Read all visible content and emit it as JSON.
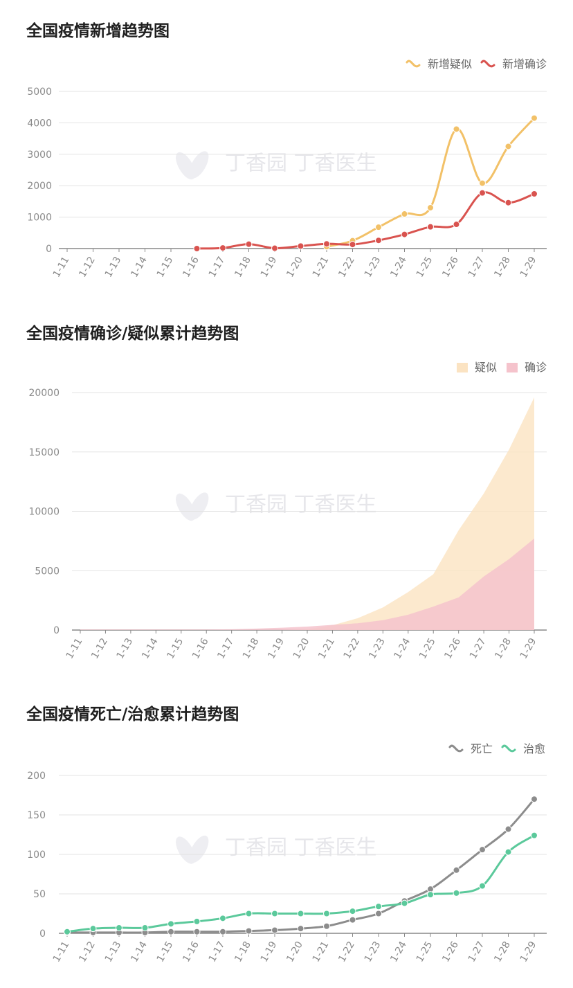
{
  "charts": [
    {
      "title": "全国疫情新增趋势图",
      "chart_data": {
        "type": "line",
        "categories": [
          "1-11",
          "1-12",
          "1-13",
          "1-14",
          "1-15",
          "1-16",
          "1-17",
          "1-18",
          "1-19",
          "1-20",
          "1-21",
          "1-22",
          "1-23",
          "1-24",
          "1-25",
          "1-26",
          "1-27",
          "1-28",
          "1-29"
        ],
        "ylim": [
          0,
          5000
        ],
        "yticks": [
          0,
          1000,
          2000,
          3000,
          4000,
          5000
        ],
        "legend_position": "top-right",
        "grid": true,
        "series": [
          {
            "name": "新增疑似",
            "color": "#f2c168",
            "values": [
              null,
              null,
              null,
              null,
              null,
              null,
              null,
              null,
              null,
              null,
              60,
              250,
              680,
              1100,
              1300,
              3800,
              2080,
              3250,
              4150
            ]
          },
          {
            "name": "新增确诊",
            "color": "#d9534f",
            "values": [
              null,
              null,
              null,
              null,
              null,
              0,
              20,
              140,
              10,
              80,
              150,
              130,
              260,
              450,
              690,
              770,
              1770,
              1460,
              1740
            ]
          }
        ]
      }
    },
    {
      "title": "全国疫情确诊/疑似累计趋势图",
      "chart_data": {
        "type": "area",
        "categories": [
          "1-11",
          "1-12",
          "1-13",
          "1-14",
          "1-15",
          "1-16",
          "1-17",
          "1-18",
          "1-19",
          "1-20",
          "1-21",
          "1-22",
          "1-23",
          "1-24",
          "1-25",
          "1-26",
          "1-27",
          "1-28",
          "1-29"
        ],
        "ylim": [
          0,
          20000
        ],
        "yticks": [
          0,
          5000,
          10000,
          15000,
          20000
        ],
        "legend_position": "top-right",
        "grid": true,
        "series": [
          {
            "name": "疑似",
            "color": "#fbe3c2",
            "values": [
              0,
              0,
              0,
              0,
              0,
              0,
              0,
              0,
              0,
              50,
              400,
              1000,
              1900,
              3200,
              4700,
              8400,
              11500,
              15200,
              19600
            ]
          },
          {
            "name": "确诊",
            "color": "#f5c3cc",
            "values": [
              41,
              41,
              41,
              41,
              41,
              45,
              62,
              121,
              198,
              291,
              440,
              571,
              830,
              1287,
              1975,
              2744,
              4515,
              5974,
              7711
            ]
          }
        ]
      }
    },
    {
      "title": "全国疫情死亡/治愈累计趋势图",
      "chart_data": {
        "type": "line",
        "categories": [
          "1-11",
          "1-12",
          "1-13",
          "1-14",
          "1-15",
          "1-16",
          "1-17",
          "1-18",
          "1-19",
          "1-20",
          "1-21",
          "1-22",
          "1-23",
          "1-24",
          "1-25",
          "1-26",
          "1-27",
          "1-28",
          "1-29"
        ],
        "ylim": [
          0,
          200
        ],
        "yticks": [
          0,
          50,
          100,
          150,
          200
        ],
        "legend_position": "top-right",
        "grid": true,
        "series": [
          {
            "name": "死亡",
            "color": "#8c8c8c",
            "values": [
              1,
              1,
              1,
              1,
              2,
              2,
              2,
              3,
              4,
              6,
              9,
              17,
              25,
              41,
              56,
              80,
              106,
              132,
              170
            ]
          },
          {
            "name": "治愈",
            "color": "#5bc99b",
            "values": [
              2,
              6,
              7,
              7,
              12,
              15,
              19,
              25,
              25,
              25,
              25,
              28,
              34,
              38,
              49,
              51,
              60,
              103,
              124
            ]
          }
        ]
      }
    }
  ],
  "watermark": "丁香园 丁香医生"
}
